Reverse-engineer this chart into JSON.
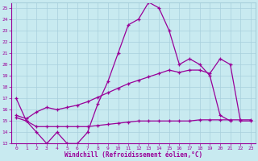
{
  "xlabel": "Windchill (Refroidissement éolien,°C)",
  "xlim": [
    -0.5,
    23.5
  ],
  "ylim": [
    13,
    25.5
  ],
  "xticks": [
    0,
    1,
    2,
    3,
    4,
    5,
    6,
    7,
    8,
    9,
    10,
    11,
    12,
    13,
    14,
    15,
    16,
    17,
    18,
    19,
    20,
    21,
    22,
    23
  ],
  "yticks": [
    13,
    14,
    15,
    16,
    17,
    18,
    19,
    20,
    21,
    22,
    23,
    24,
    25
  ],
  "bg_color": "#c8eaf0",
  "grid_color": "#a8d0dc",
  "line_color": "#990099",
  "line1_y": [
    17,
    15,
    14,
    13,
    14,
    13,
    13,
    14,
    16.5,
    18.5,
    21,
    23.5,
    24,
    25.5,
    25,
    23,
    20,
    20.5,
    20,
    19,
    15.5,
    15,
    null,
    null
  ],
  "line2_y": [
    15.5,
    15.2,
    15.8,
    16.2,
    16.0,
    16.2,
    16.4,
    16.7,
    17.1,
    17.5,
    17.9,
    18.3,
    18.6,
    18.9,
    19.2,
    19.5,
    19.3,
    19.5,
    19.5,
    19.2,
    20.5,
    20,
    15,
    15
  ],
  "line3_y": [
    15.3,
    15.0,
    14.5,
    14.5,
    14.5,
    14.5,
    14.5,
    14.5,
    14.6,
    14.7,
    14.8,
    14.9,
    15.0,
    15.0,
    15.0,
    15.0,
    15.0,
    15.0,
    15.1,
    15.1,
    15.1,
    15.1,
    15.1,
    15.1
  ]
}
